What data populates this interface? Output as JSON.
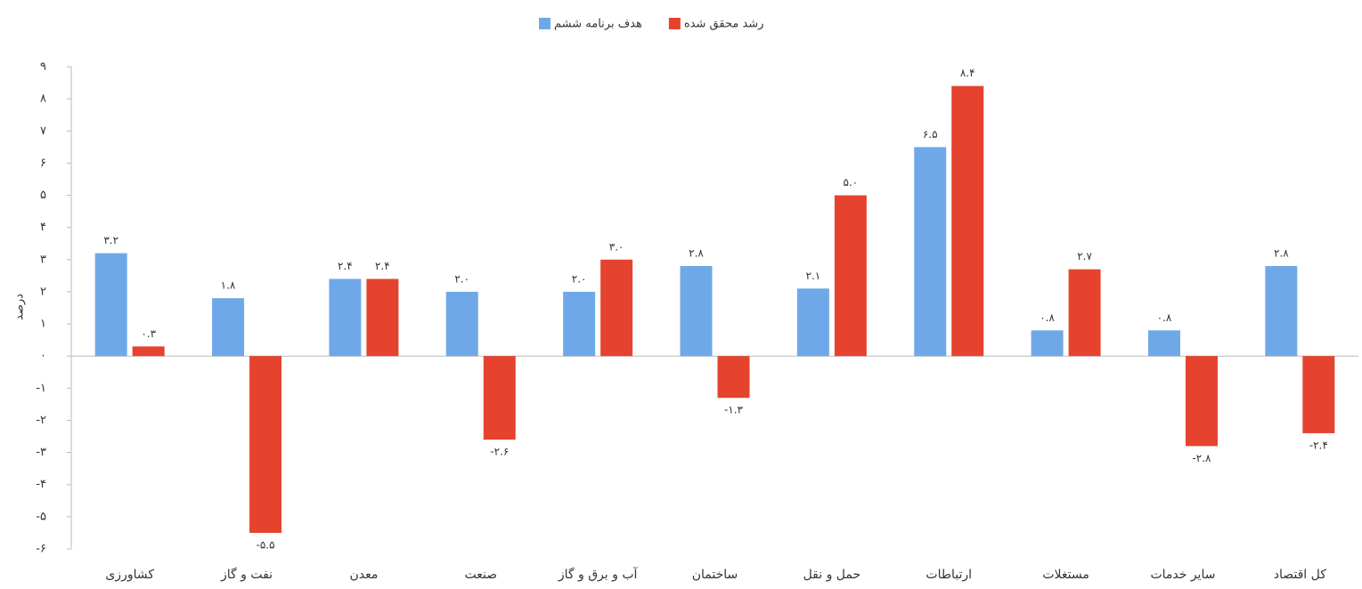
{
  "chart_data": {
    "type": "bar",
    "categories": [
      "کشاورزی",
      "نفت و گاز",
      "معدن",
      "صنعت",
      "آب و برق و گاز",
      "ساختمان",
      "حمل و نقل",
      "ارتباطات",
      "مستغلات",
      "سایر خدمات",
      "کل اقتصاد"
    ],
    "series": [
      {
        "name": "هدف برنامه ششم",
        "color": "#6fa8e8",
        "values": [
          3.2,
          1.8,
          2.4,
          2.0,
          2.0,
          2.8,
          2.1,
          6.5,
          0.8,
          0.8,
          2.8
        ],
        "value_labels": [
          "۳.۲",
          "۱.۸",
          "۲.۴",
          "۲.۰",
          "۲.۰",
          "۲.۸",
          "۲.۱",
          "۶.۵",
          "۰.۸",
          "۰.۸",
          "۲.۸"
        ]
      },
      {
        "name": "رشد محقق شده",
        "color": "#e5432e",
        "values": [
          0.3,
          -5.5,
          2.4,
          -2.6,
          3.0,
          -1.3,
          5.0,
          8.4,
          2.7,
          -2.8,
          -2.4
        ],
        "value_labels": [
          "۰.۳",
          "-۵.۵",
          "۲.۴",
          "-۲.۶",
          "۳.۰",
          "-۱.۳",
          "۵.۰",
          "۸.۴",
          "۲.۷",
          "-۲.۸",
          "-۲.۴"
        ]
      }
    ],
    "y_label": "درصد",
    "ylim": [
      -6,
      9
    ],
    "yticks": [
      {
        "value": -6,
        "label": "-۶"
      },
      {
        "value": -5,
        "label": "-۵"
      },
      {
        "value": -4,
        "label": "-۴"
      },
      {
        "value": -3,
        "label": "-۳"
      },
      {
        "value": -2,
        "label": "-۲"
      },
      {
        "value": -1,
        "label": "-۱"
      },
      {
        "value": 0,
        "label": "۰"
      },
      {
        "value": 1,
        "label": "۱"
      },
      {
        "value": 2,
        "label": "۲"
      },
      {
        "value": 3,
        "label": "۳"
      },
      {
        "value": 4,
        "label": "۴"
      },
      {
        "value": 5,
        "label": "۵"
      },
      {
        "value": 6,
        "label": "۶"
      },
      {
        "value": 7,
        "label": "۷"
      },
      {
        "value": 8,
        "label": "۸"
      },
      {
        "value": 9,
        "label": "۹"
      }
    ],
    "legend": "top",
    "grid": false
  }
}
